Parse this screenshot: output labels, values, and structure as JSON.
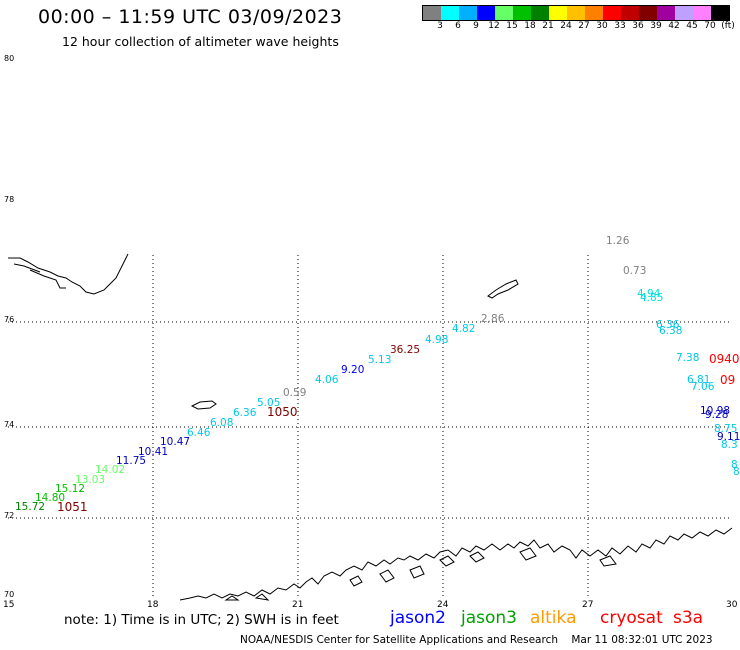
{
  "header": {
    "title": "00:00 – 11:59 UTC 03/09/2023",
    "subtitle": "12 hour collection of altimeter wave heights"
  },
  "colorbar": {
    "colors": [
      "#808080",
      "#00ffff",
      "#00b0ff",
      "#0000ff",
      "#66ff66",
      "#00c000",
      "#008000",
      "#ffff00",
      "#ffc000",
      "#ff8000",
      "#ff0000",
      "#c00000",
      "#800000",
      "#a000a0",
      "#c0a0ff",
      "#ff80ff",
      "#000000"
    ],
    "labels": [
      "3",
      "6",
      "9",
      "12",
      "15",
      "18",
      "21",
      "24",
      "27",
      "30",
      "33",
      "36",
      "39",
      "42",
      "45",
      "70",
      "(ft)"
    ]
  },
  "axes": {
    "lat_labels": [
      "80",
      "78",
      "76",
      "74",
      "72",
      "70"
    ],
    "lon_labels": [
      "15",
      "18",
      "21",
      "24",
      "27",
      "30"
    ]
  },
  "observations": [
    {
      "t": "1.26",
      "c": "#808080"
    },
    {
      "t": "0.73",
      "c": "#808080"
    },
    {
      "t": "4.94",
      "c": "#00e0e0"
    },
    {
      "t": "4.85",
      "c": "#00e0e0"
    },
    {
      "t": "2.86",
      "c": "#808080"
    },
    {
      "t": "4.82",
      "c": "#00c8e8"
    },
    {
      "t": "4.98",
      "c": "#00c8e8"
    },
    {
      "t": "36.25",
      "c": "#800000"
    },
    {
      "t": "5.13",
      "c": "#00c8e8"
    },
    {
      "t": "9.20",
      "c": "#0000ff"
    },
    {
      "t": "4.06",
      "c": "#00c8e8"
    },
    {
      "t": "0.59",
      "c": "#808080"
    },
    {
      "t": "5.05",
      "c": "#00c8e8"
    },
    {
      "t": "1050",
      "c": "#800000"
    },
    {
      "t": "6.36",
      "c": "#00c8e8"
    },
    {
      "t": "6.08",
      "c": "#00c8e8"
    },
    {
      "t": "6.46",
      "c": "#00c8e8"
    },
    {
      "t": "10.47",
      "c": "#0000c0"
    },
    {
      "t": "10.41",
      "c": "#0000c0"
    },
    {
      "t": "11.75",
      "c": "#0000c0"
    },
    {
      "t": "14.02",
      "c": "#66ff66"
    },
    {
      "t": "13.03",
      "c": "#66ff66"
    },
    {
      "t": "15.12",
      "c": "#00c000"
    },
    {
      "t": "14.80",
      "c": "#00c000"
    },
    {
      "t": "15.72",
      "c": "#008000"
    },
    {
      "t": "1051",
      "c": "#800000"
    },
    {
      "t": "6.36",
      "c": "#00c8e8"
    },
    {
      "t": "6.38",
      "c": "#00c8e8"
    },
    {
      "t": "7.38",
      "c": "#00c8e8"
    },
    {
      "t": "0940",
      "c": "#ff0000"
    },
    {
      "t": "6.81",
      "c": "#00c8e8"
    },
    {
      "t": "7.06",
      "c": "#00c8e8"
    },
    {
      "t": "09",
      "c": "#ff0000"
    },
    {
      "t": "10.98",
      "c": "#0000c0"
    },
    {
      "t": "9.28",
      "c": "#0000c0"
    },
    {
      "t": "8.75",
      "c": "#00c8e8"
    },
    {
      "t": "9.11",
      "c": "#0000c0"
    },
    {
      "t": "8.3",
      "c": "#00c8e8"
    },
    {
      "t": "8",
      "c": "#00c8e8"
    },
    {
      "t": "8",
      "c": "#00c8e8"
    }
  ],
  "note": "note: 1) Time is in UTC; 2) SWH is in feet",
  "satellites": [
    {
      "name": "jason2",
      "color": "#0000ff"
    },
    {
      "name": "jason3",
      "color": "#00a000"
    },
    {
      "name": "altika",
      "color": "#ff9900"
    },
    {
      "name": "cryosat",
      "color": "#ff0000"
    },
    {
      "name": "s3a",
      "color": "#ff0000"
    }
  ],
  "footer": {
    "credit": "NOAA/NESDIS Center for Satellite Applications and Research",
    "timestamp": "Mar 11 08:32:01 UTC 2023"
  }
}
